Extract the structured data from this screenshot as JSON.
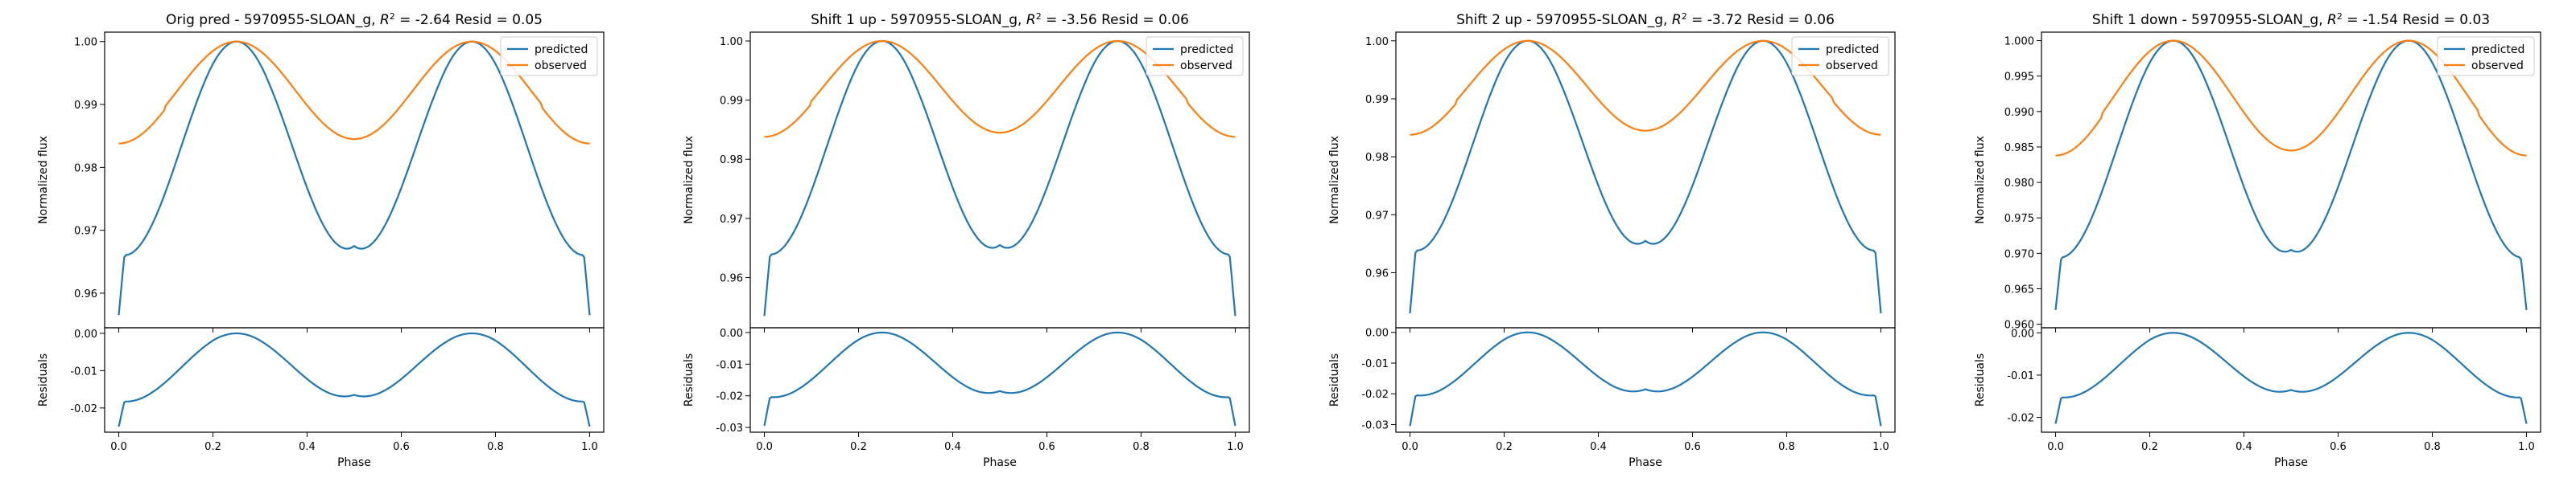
{
  "colors": {
    "predicted": "#1f77b4",
    "observed": "#ff7f0e"
  },
  "chart_data": [
    {
      "type": "line",
      "title_prefix": "Orig pred - 5970955-SLOAN_g, ",
      "r2_value": "-2.64",
      "resid_text": " Resid = 0.05",
      "ylabel": "Normalized flux",
      "resid_ylabel": "Residuals",
      "xlabel": "Phase",
      "legend": [
        "predicted",
        "observed"
      ],
      "legend_position": "top-right",
      "xlim": [
        -0.03,
        1.03
      ],
      "xticks": [
        "0.0",
        "0.2",
        "0.4",
        "0.6",
        "0.8",
        "1.0"
      ],
      "ylim": [
        0.9545,
        1.0015
      ],
      "yticks": [
        "0.96",
        "0.97",
        "0.98",
        "0.99",
        "1.00"
      ],
      "resid_ylim": [
        -0.0265,
        0.0015
      ],
      "resid_yticks": [
        "0.00",
        "-0.01",
        "-0.02"
      ],
      "series": [
        {
          "name": "predicted",
          "min": 0.9565,
          "max": 1.0,
          "mid_dip": 0.9675
        },
        {
          "name": "observed",
          "min": 0.9845,
          "max": 1.0,
          "edge": 0.9838
        }
      ],
      "residuals": {
        "min": -0.025,
        "max": 0.0,
        "mid": -0.0165
      }
    },
    {
      "type": "line",
      "title_prefix": "Shift 1 up - 5970955-SLOAN_g, ",
      "r2_value": "-3.56",
      "resid_text": " Resid = 0.06",
      "ylabel": "Normalized flux",
      "resid_ylabel": "Residuals",
      "xlabel": "Phase",
      "legend": [
        "predicted",
        "observed"
      ],
      "legend_position": "top-right",
      "xlim": [
        -0.03,
        1.03
      ],
      "xticks": [
        "0.0",
        "0.2",
        "0.4",
        "0.6",
        "0.8",
        "1.0"
      ],
      "ylim": [
        0.9515,
        1.0015
      ],
      "yticks": [
        "0.96",
        "0.97",
        "0.98",
        "0.99",
        "1.00"
      ],
      "resid_ylim": [
        -0.0315,
        0.0015
      ],
      "resid_yticks": [
        "0.00",
        "-0.01",
        "-0.02",
        "-0.03"
      ],
      "series": [
        {
          "name": "predicted",
          "min": 0.9535,
          "max": 1.0,
          "mid_dip": 0.9655
        },
        {
          "name": "observed",
          "min": 0.9845,
          "max": 1.0,
          "edge": 0.9838
        }
      ],
      "residuals": {
        "min": -0.0295,
        "max": 0.0,
        "mid": -0.0185
      }
    },
    {
      "type": "line",
      "title_prefix": "Shift 2 up - 5970955-SLOAN_g, ",
      "r2_value": "-3.72",
      "resid_text": " Resid = 0.06",
      "ylabel": "Normalized flux",
      "resid_ylabel": "Residuals",
      "xlabel": "Phase",
      "legend": [
        "predicted",
        "observed"
      ],
      "legend_position": "top-right",
      "xlim": [
        -0.03,
        1.03
      ],
      "xticks": [
        "0.0",
        "0.2",
        "0.4",
        "0.6",
        "0.8",
        "1.0"
      ],
      "ylim": [
        0.9505,
        1.0015
      ],
      "yticks": [
        "0.96",
        "0.97",
        "0.98",
        "0.99",
        "1.00"
      ],
      "resid_ylim": [
        -0.0325,
        0.0015
      ],
      "resid_yticks": [
        "0.00",
        "-0.01",
        "-0.02",
        "-0.03"
      ],
      "series": [
        {
          "name": "predicted",
          "min": 0.953,
          "max": 1.0,
          "mid_dip": 0.9655
        },
        {
          "name": "observed",
          "min": 0.9845,
          "max": 1.0,
          "edge": 0.9838
        }
      ],
      "residuals": {
        "min": -0.0305,
        "max": 0.0,
        "mid": -0.0185
      }
    },
    {
      "type": "line",
      "title_prefix": "Shift 1 down - 5970955-SLOAN_g, ",
      "r2_value": "-1.54",
      "resid_text": " Resid = 0.03",
      "ylabel": "Normalized flux",
      "resid_ylabel": "Residuals",
      "xlabel": "Phase",
      "legend": [
        "predicted",
        "observed"
      ],
      "legend_position": "top-right",
      "xlim": [
        -0.03,
        1.03
      ],
      "xticks": [
        "0.0",
        "0.2",
        "0.4",
        "0.6",
        "0.8",
        "1.0"
      ],
      "ylim": [
        0.9595,
        1.0012
      ],
      "yticks": [
        "0.960",
        "0.965",
        "0.970",
        "0.975",
        "0.980",
        "0.985",
        "0.990",
        "0.995",
        "1.000"
      ],
      "resid_ylim": [
        -0.0235,
        0.0012
      ],
      "resid_yticks": [
        "0.00",
        "-0.01",
        "-0.02"
      ],
      "series": [
        {
          "name": "predicted",
          "min": 0.962,
          "max": 1.0,
          "mid_dip": 0.9705
        },
        {
          "name": "observed",
          "min": 0.9845,
          "max": 1.0,
          "edge": 0.9838
        }
      ],
      "residuals": {
        "min": -0.0215,
        "max": 0.0,
        "mid": -0.0135
      }
    }
  ]
}
